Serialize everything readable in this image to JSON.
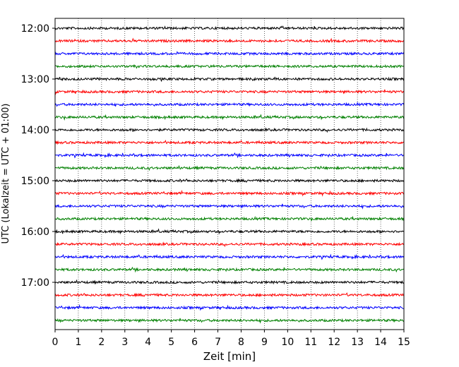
{
  "chart_data": {
    "type": "line",
    "title": "",
    "xlabel": "Zeit  [min]",
    "ylabel": "UTC (Lokalzeit = UTC + 01:00)",
    "xlim": [
      0,
      15
    ],
    "x_ticks": [
      "0",
      "1",
      "2",
      "3",
      "4",
      "5",
      "6",
      "7",
      "8",
      "9",
      "10",
      "11",
      "12",
      "13",
      "14",
      "15"
    ],
    "y_tick_labels": [
      "12:00",
      "13:00",
      "14:00",
      "15:00",
      "16:00",
      "17:00"
    ],
    "trace_start_times": [
      "12:00",
      "12:15",
      "12:30",
      "12:45",
      "13:00",
      "13:15",
      "13:30",
      "13:45",
      "14:00",
      "14:15",
      "14:30",
      "14:45",
      "15:00",
      "15:15",
      "15:30",
      "15:45",
      "16:00",
      "16:15",
      "16:30",
      "16:45",
      "17:00",
      "17:15",
      "17:30",
      "17:45"
    ],
    "trace_interval_min": 15,
    "trace_colors": [
      "#000000",
      "#ff0000",
      "#0000ff",
      "#008000"
    ],
    "grid_x": true,
    "grid_style": "dotted",
    "series_description": "seismogram helicorder traces, noise around zero"
  }
}
